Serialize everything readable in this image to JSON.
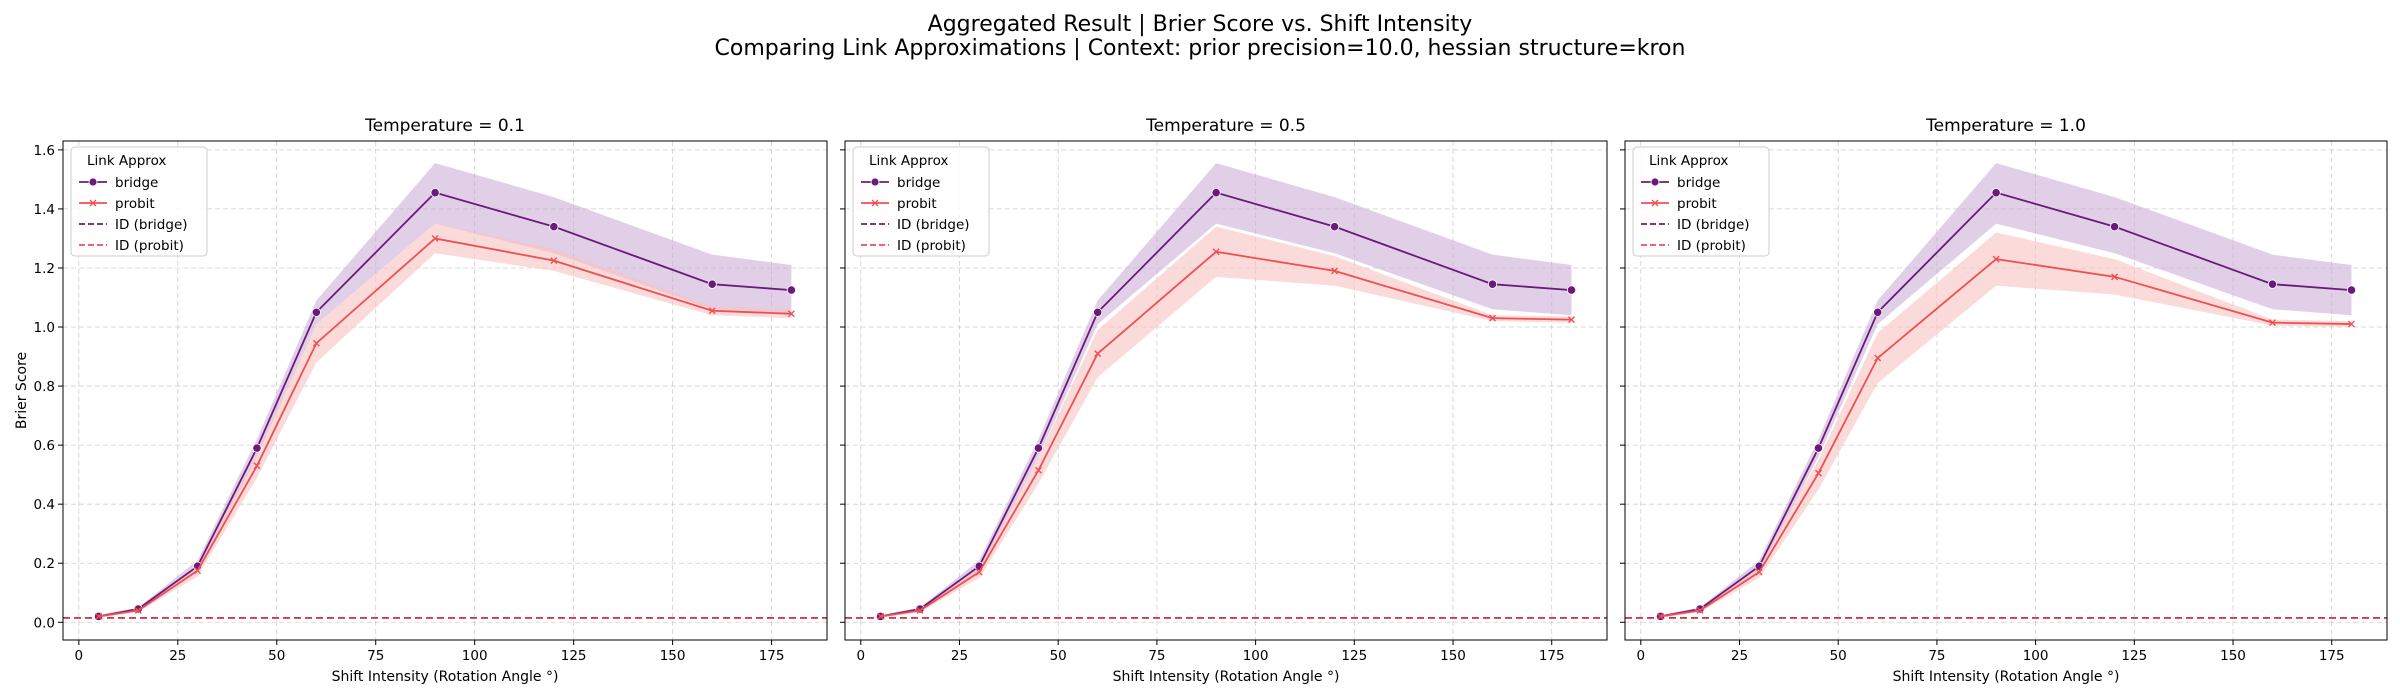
{
  "figure": {
    "title_line1": "Aggregated Result | Brier Score vs. Shift Intensity",
    "title_line2": "Comparing Link Approximations | Context: prior precision=10.0, hessian structure=kron"
  },
  "colors": {
    "bridge": "#6a1b7a",
    "bridge_band": "#c9a7d6",
    "probit": "#ef4f52",
    "probit_band": "#f9c1c2",
    "grid": "#b0b0b0"
  },
  "chart_data": [
    {
      "type": "line",
      "title": "Temperature = 0.1",
      "xlabel": "Shift Intensity (Rotation Angle °)",
      "ylabel": "Brier Score",
      "xlim": [
        -4,
        189
      ],
      "ylim": [
        -0.06,
        1.63
      ],
      "xticks": [
        0,
        25,
        50,
        75,
        100,
        125,
        150,
        175
      ],
      "yticks": [
        0.0,
        0.2,
        0.4,
        0.6,
        0.8,
        1.0,
        1.2,
        1.4,
        1.6
      ],
      "grid": true,
      "legend": {
        "title": "Link Approx",
        "placement": "top-left",
        "entries": [
          "bridge",
          "probit",
          "ID (bridge)",
          "ID (probit)"
        ]
      },
      "x": [
        5,
        15,
        30,
        45,
        60,
        90,
        120,
        160,
        180
      ],
      "series": [
        {
          "name": "bridge",
          "marker": "circle",
          "values": [
            0.02,
            0.045,
            0.19,
            0.59,
            1.05,
            1.455,
            1.34,
            1.145,
            1.125
          ],
          "ci_low": [
            0.015,
            0.04,
            0.17,
            0.56,
            1.01,
            1.35,
            1.25,
            1.06,
            1.04
          ],
          "ci_high": [
            0.025,
            0.05,
            0.21,
            0.62,
            1.09,
            1.555,
            1.44,
            1.245,
            1.21
          ]
        },
        {
          "name": "probit",
          "marker": "x",
          "values": [
            0.02,
            0.04,
            0.175,
            0.53,
            0.945,
            1.3,
            1.225,
            1.055,
            1.045
          ],
          "ci_low": [
            0.015,
            0.035,
            0.155,
            0.49,
            0.88,
            1.25,
            1.19,
            1.04,
            1.03
          ],
          "ci_high": [
            0.025,
            0.045,
            0.195,
            0.57,
            1.01,
            1.35,
            1.265,
            1.07,
            1.06
          ]
        }
      ],
      "reference_lines": [
        {
          "name": "ID (bridge)",
          "y": 0.015
        },
        {
          "name": "ID (probit)",
          "y": 0.014
        }
      ]
    },
    {
      "type": "line",
      "title": "Temperature = 0.5",
      "xlabel": "Shift Intensity (Rotation Angle °)",
      "ylabel": "",
      "xlim": [
        -4,
        189
      ],
      "ylim": [
        -0.06,
        1.63
      ],
      "xticks": [
        0,
        25,
        50,
        75,
        100,
        125,
        150,
        175
      ],
      "yticks": [
        0.0,
        0.2,
        0.4,
        0.6,
        0.8,
        1.0,
        1.2,
        1.4,
        1.6
      ],
      "grid": true,
      "legend": {
        "title": "Link Approx",
        "placement": "top-left",
        "entries": [
          "bridge",
          "probit",
          "ID (bridge)",
          "ID (probit)"
        ]
      },
      "x": [
        5,
        15,
        30,
        45,
        60,
        90,
        120,
        160,
        180
      ],
      "series": [
        {
          "name": "bridge",
          "marker": "circle",
          "values": [
            0.02,
            0.045,
            0.19,
            0.59,
            1.05,
            1.455,
            1.34,
            1.145,
            1.125
          ],
          "ci_low": [
            0.015,
            0.04,
            0.17,
            0.56,
            1.01,
            1.35,
            1.25,
            1.06,
            1.04
          ],
          "ci_high": [
            0.025,
            0.05,
            0.21,
            0.62,
            1.09,
            1.555,
            1.44,
            1.245,
            1.21
          ]
        },
        {
          "name": "probit",
          "marker": "x",
          "values": [
            0.02,
            0.04,
            0.17,
            0.515,
            0.91,
            1.255,
            1.19,
            1.03,
            1.025
          ],
          "ci_low": [
            0.015,
            0.035,
            0.15,
            0.47,
            0.83,
            1.17,
            1.14,
            1.02,
            1.015
          ],
          "ci_high": [
            0.025,
            0.045,
            0.19,
            0.56,
            0.99,
            1.34,
            1.24,
            1.04,
            1.035
          ]
        }
      ],
      "reference_lines": [
        {
          "name": "ID (bridge)",
          "y": 0.015
        },
        {
          "name": "ID (probit)",
          "y": 0.014
        }
      ]
    },
    {
      "type": "line",
      "title": "Temperature = 1.0",
      "xlabel": "Shift Intensity (Rotation Angle °)",
      "ylabel": "",
      "xlim": [
        -4,
        189
      ],
      "ylim": [
        -0.06,
        1.63
      ],
      "xticks": [
        0,
        25,
        50,
        75,
        100,
        125,
        150,
        175
      ],
      "yticks": [
        0.0,
        0.2,
        0.4,
        0.6,
        0.8,
        1.0,
        1.2,
        1.4,
        1.6
      ],
      "grid": true,
      "legend": {
        "title": "Link Approx",
        "placement": "top-left",
        "entries": [
          "bridge",
          "probit",
          "ID (bridge)",
          "ID (probit)"
        ]
      },
      "x": [
        5,
        15,
        30,
        45,
        60,
        90,
        120,
        160,
        180
      ],
      "series": [
        {
          "name": "bridge",
          "marker": "circle",
          "values": [
            0.02,
            0.045,
            0.19,
            0.59,
            1.05,
            1.455,
            1.34,
            1.145,
            1.125
          ],
          "ci_low": [
            0.015,
            0.04,
            0.17,
            0.56,
            1.01,
            1.35,
            1.25,
            1.06,
            1.04
          ],
          "ci_high": [
            0.025,
            0.05,
            0.21,
            0.62,
            1.09,
            1.555,
            1.44,
            1.245,
            1.21
          ]
        },
        {
          "name": "probit",
          "marker": "x",
          "values": [
            0.02,
            0.04,
            0.17,
            0.505,
            0.895,
            1.23,
            1.17,
            1.015,
            1.01
          ],
          "ci_low": [
            0.015,
            0.035,
            0.15,
            0.45,
            0.81,
            1.14,
            1.11,
            1.005,
            1.0
          ],
          "ci_high": [
            0.025,
            0.045,
            0.19,
            0.55,
            0.98,
            1.32,
            1.23,
            1.025,
            1.02
          ]
        }
      ],
      "reference_lines": [
        {
          "name": "ID (bridge)",
          "y": 0.015
        },
        {
          "name": "ID (probit)",
          "y": 0.014
        }
      ]
    }
  ]
}
